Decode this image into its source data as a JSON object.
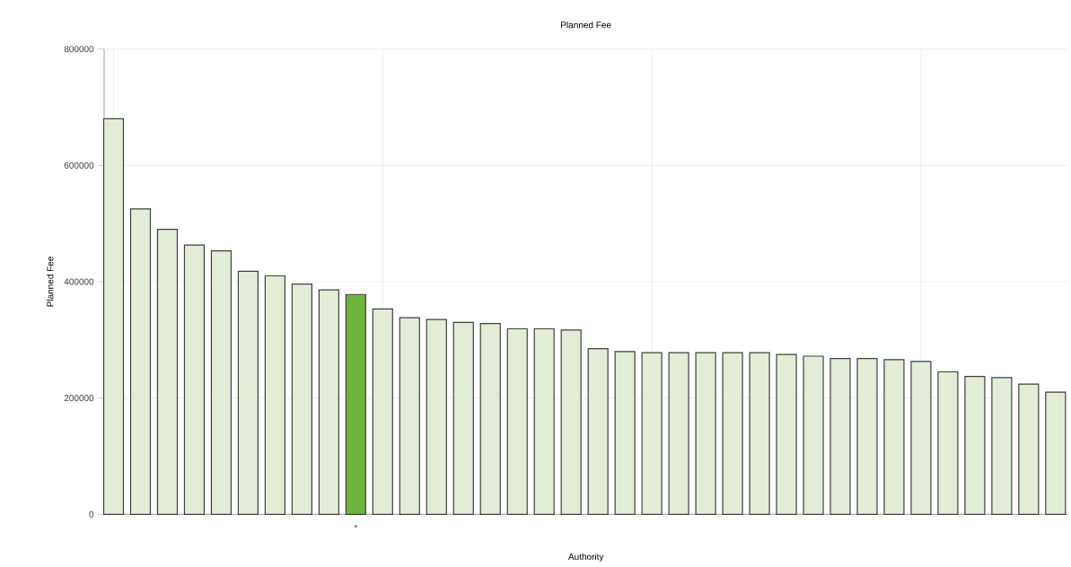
{
  "chart_data": {
    "type": "bar",
    "title": "Planned Fee",
    "xlabel": "Authority",
    "ylabel": "Planned Fee",
    "categories": [
      null,
      null,
      null,
      null,
      null,
      null,
      null,
      null,
      null,
      "*",
      null,
      null,
      null,
      null,
      null,
      null,
      null,
      null,
      null,
      null,
      null,
      null,
      null,
      null,
      null,
      null,
      null,
      null,
      null,
      null,
      null,
      null,
      null,
      null,
      null,
      null
    ],
    "values": [
      680000,
      525000,
      490000,
      463000,
      453000,
      418000,
      410000,
      396000,
      386000,
      378000,
      353000,
      338000,
      335000,
      330000,
      328000,
      319000,
      319000,
      317000,
      285000,
      280000,
      278000,
      278000,
      278000,
      278000,
      278000,
      275000,
      272000,
      268000,
      268000,
      266000,
      263000,
      245000,
      237000,
      235000,
      224000,
      210000
    ],
    "colors": [
      "#e2ecd6",
      "#e2ecd6",
      "#e2ecd6",
      "#e2ecd6",
      "#e2ecd6",
      "#e2ecd6",
      "#e2ecd6",
      "#e2ecd6",
      "#e2ecd6",
      "#6eb33f",
      "#e2ecd6",
      "#e2ecd6",
      "#e2ecd6",
      "#e2ecd6",
      "#e2ecd6",
      "#e2ecd6",
      "#e2ecd6",
      "#e2ecd6",
      "#e2ecd6",
      "#e2ecd6",
      "#e2ecd6",
      "#e2ecd6",
      "#e2ecd6",
      "#e2ecd6",
      "#e2ecd6",
      "#e2ecd6",
      "#e2ecd6",
      "#e2ecd6",
      "#e2ecd6",
      "#e2ecd6",
      "#e2ecd6",
      "#e2ecd6",
      "#e2ecd6",
      "#e2ecd6",
      "#e2ecd6",
      "#e2ecd6"
    ],
    "ylim": [
      0,
      800000
    ],
    "yticks": [
      0,
      200000,
      400000,
      600000,
      800000
    ],
    "grid": true
  }
}
